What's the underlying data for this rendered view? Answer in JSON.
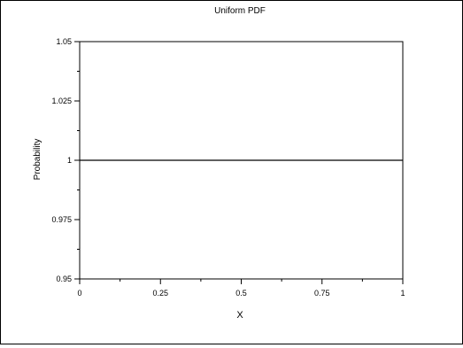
{
  "chart_data": {
    "type": "line",
    "title": "Uniform PDF",
    "xlabel": "X",
    "ylabel": "Probability",
    "xlim": [
      0,
      1
    ],
    "ylim": [
      0.95,
      1.05
    ],
    "x_ticks": [
      0,
      0.25,
      0.5,
      0.75,
      1
    ],
    "x_tick_labels": [
      "0",
      "0.25",
      "0.5",
      "0.75",
      "1"
    ],
    "y_ticks": [
      0.95,
      0.975,
      1,
      1.025,
      1.05
    ],
    "y_tick_labels": [
      "0.95",
      "0.975",
      "1",
      "1.025",
      "1.05"
    ],
    "grid": false,
    "series": [
      {
        "x": [
          0,
          1
        ],
        "y": [
          1,
          1
        ]
      }
    ]
  },
  "colors": {
    "line": "#000000",
    "axes": "#000000",
    "background": "#ffffff"
  }
}
